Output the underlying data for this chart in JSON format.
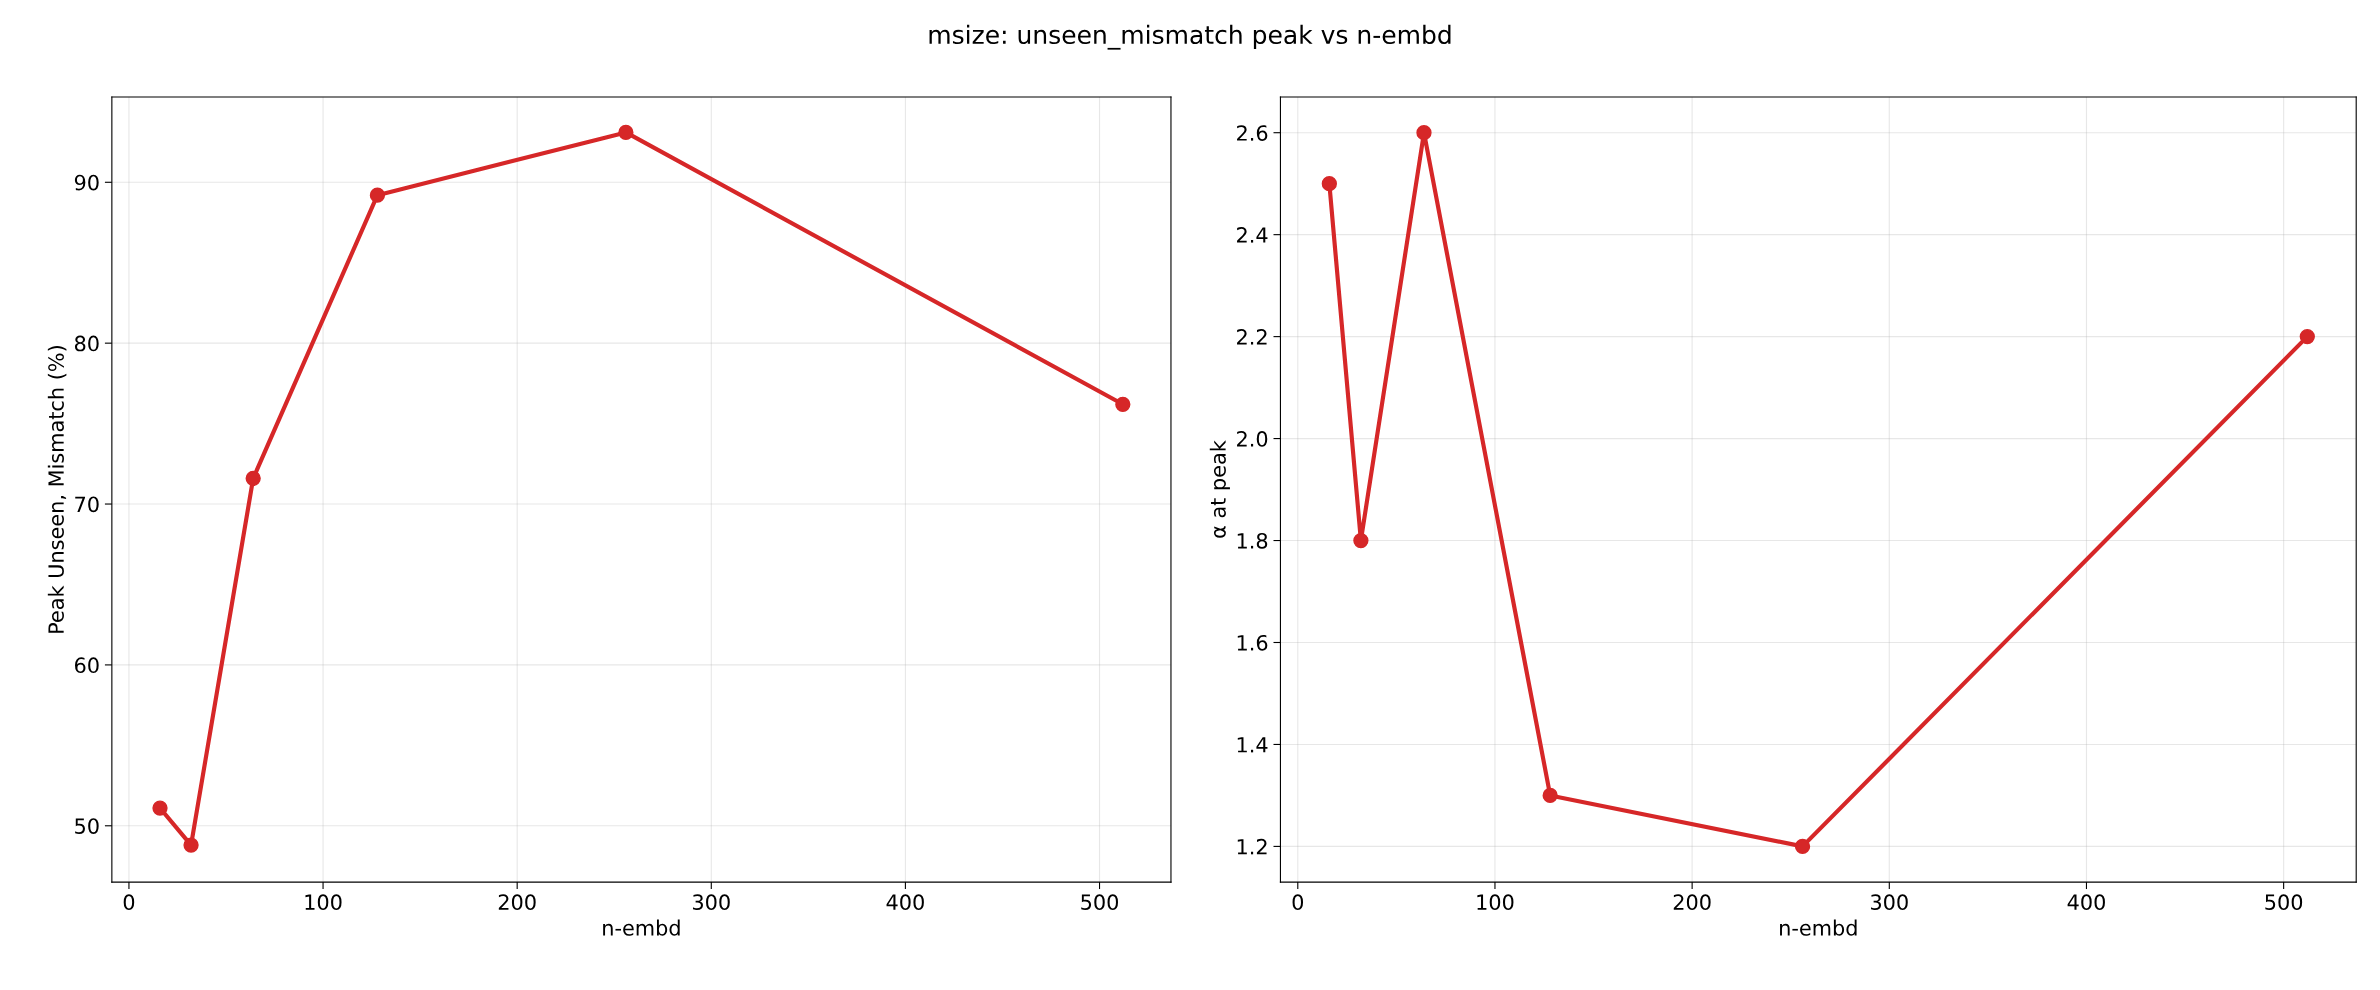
{
  "chart_data": [
    {
      "type": "line",
      "title": "msize: unseen_mismatch peak vs n-embd",
      "xlabel": "n-embd",
      "ylabel": "Peak Unseen, Mismatch (%)",
      "x": [
        16,
        32,
        64,
        128,
        256,
        512
      ],
      "series": [
        {
          "color": "#d62728",
          "values": [
            51.1,
            48.8,
            71.6,
            89.2,
            93.1,
            76.2
          ]
        }
      ],
      "xlim": [
        -8.8,
        536.8
      ],
      "ylim": [
        46.5,
        95.3
      ],
      "xticks": [
        0,
        100,
        200,
        300,
        400,
        500
      ],
      "yticks": [
        50,
        60,
        70,
        80,
        90
      ],
      "grid": true,
      "marker": "circle",
      "line_style": "solid",
      "legend": false
    },
    {
      "type": "line",
      "xlabel": "n-embd",
      "ylabel": "α at peak",
      "x": [
        16,
        32,
        64,
        128,
        256,
        512
      ],
      "series": [
        {
          "color": "#d62728",
          "values": [
            2.5,
            1.8,
            2.6,
            1.3,
            1.2,
            2.2
          ]
        }
      ],
      "xlim": [
        -8.8,
        536.8
      ],
      "ylim": [
        1.13,
        2.67
      ],
      "xticks": [
        0,
        100,
        200,
        300,
        400,
        500
      ],
      "yticks": [
        {
          "value": 1.2,
          "label": "1.2"
        },
        {
          "value": 1.4,
          "label": "1.4"
        },
        {
          "value": 1.6,
          "label": "1.6"
        },
        {
          "value": 1.8,
          "label": "1.8"
        },
        {
          "value": 2.0,
          "label": "2.0"
        },
        {
          "value": 2.2,
          "label": "2.2"
        },
        {
          "value": 2.4,
          "label": "2.4"
        },
        {
          "value": 2.6,
          "label": "2.6"
        }
      ],
      "grid": true,
      "marker": "circle",
      "line_style": "solid",
      "legend": false
    }
  ]
}
